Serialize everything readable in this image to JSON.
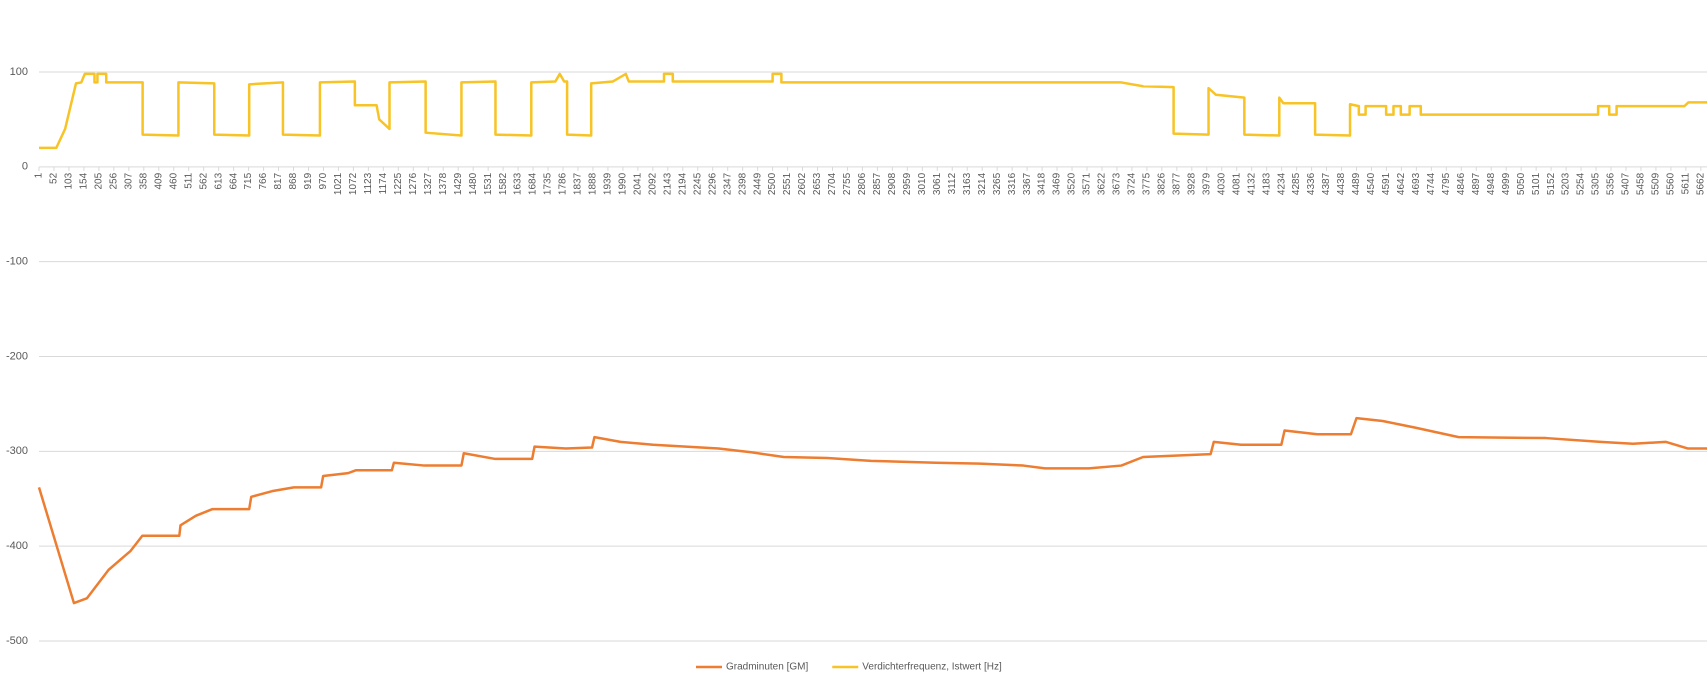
{
  "chart_data": {
    "type": "line",
    "xlim": [
      1,
      5683
    ],
    "xticks": [
      1,
      52,
      103,
      154,
      205,
      256,
      307,
      358,
      409,
      460,
      511,
      562,
      613,
      664,
      715,
      766,
      817,
      868,
      919,
      970,
      1021,
      1072,
      1123,
      1174,
      1225,
      1276,
      1327,
      1378,
      1429,
      1480,
      1531,
      1582,
      1633,
      1684,
      1735,
      1786,
      1837,
      1888,
      1939,
      1990,
      2041,
      2092,
      2143,
      2194,
      2245,
      2296,
      2347,
      2398,
      2449,
      2500,
      2551,
      2602,
      2653,
      2704,
      2755,
      2806,
      2857,
      2908,
      2959,
      3010,
      3061,
      3112,
      3163,
      3214,
      3265,
      3316,
      3367,
      3418,
      3469,
      3520,
      3571,
      3622,
      3673,
      3724,
      3775,
      3826,
      3877,
      3928,
      3979,
      4030,
      4081,
      4132,
      4183,
      4234,
      4285,
      4336,
      4387,
      4438,
      4489,
      4540,
      4591,
      4642,
      4693,
      4744,
      4795,
      4846,
      4897,
      4948,
      4999,
      5050,
      5101,
      5152,
      5203,
      5254,
      5305,
      5356,
      5407,
      5458,
      5509,
      5560,
      5611,
      5662
    ],
    "ylim": [
      -500,
      100
    ],
    "yticks": [
      -500,
      -400,
      -300,
      -200,
      -100,
      0,
      100
    ],
    "grid": true,
    "legend": "bottom",
    "series": [
      {
        "name": "Gradminuten [GM]",
        "color": "#ed7d31",
        "x": [
          1,
          120,
          164,
          238,
          313,
          353,
          479,
          483,
          535,
          591,
          717,
          724,
          795,
          869,
          962,
          969,
          1054,
          1080,
          1203,
          1210,
          1314,
          1440,
          1448,
          1555,
          1681,
          1689,
          1796,
          1885,
          1893,
          1982,
          2093,
          2316,
          2427,
          2538,
          2686,
          2835,
          3057,
          3206,
          3354,
          3428,
          3577,
          3688,
          3762,
          3992,
          4003,
          4096,
          4233,
          4244,
          4355,
          4470,
          4489,
          4578,
          4689,
          4837,
          5134,
          5320,
          5431,
          5542,
          5617,
          5683
        ],
        "values": [
          -338,
          -460,
          -455,
          -425,
          -405,
          -389,
          -389,
          -378,
          -368,
          -361,
          -361,
          -348,
          -342,
          -338,
          -338,
          -326,
          -323,
          -320,
          -320,
          -312,
          -315,
          -315,
          -302,
          -308,
          -308,
          -295,
          -297,
          -296,
          -285,
          -290,
          -293,
          -297,
          -301,
          -306,
          -307,
          -310,
          -312,
          -313,
          -315,
          -318,
          -318,
          -315,
          -306,
          -303,
          -290,
          -293,
          -293,
          -278,
          -282,
          -282,
          -265,
          -268,
          -275,
          -285,
          -286,
          -290,
          -292,
          -290,
          -297,
          -297
        ]
      },
      {
        "name": "Verdichterfrequenz, Istwert [Hz]",
        "color": "#f7c325",
        "x": [
          1,
          60,
          90,
          127,
          145,
          157,
          190,
          190,
          200,
          200,
          230,
          230,
          354,
          354,
          476,
          476,
          598,
          598,
          717,
          717,
          832,
          832,
          958,
          958,
          1077,
          1077,
          1151,
          1160,
          1195,
          1195,
          1318,
          1318,
          1440,
          1440,
          1556,
          1556,
          1678,
          1678,
          1760,
          1775,
          1790,
          1800,
          1800,
          1882,
          1882,
          1956,
          2000,
          2010,
          2130,
          2130,
          2160,
          2160,
          2500,
          2500,
          2530,
          2530,
          3688,
          3762,
          3866,
          3866,
          3985,
          3985,
          4010,
          4107,
          4107,
          4226,
          4226,
          4240,
          4348,
          4348,
          4467,
          4467,
          4497,
          4497,
          4520,
          4520,
          4590,
          4590,
          4615,
          4615,
          4640,
          4640,
          4670,
          4670,
          4708,
          4708,
          5312,
          5312,
          5350,
          5350,
          5375,
          5375,
          5606,
          5620,
          5683
        ],
        "values": [
          20,
          20,
          40,
          88,
          89,
          98,
          98,
          89,
          89,
          98,
          98,
          89,
          89,
          34,
          33,
          89,
          88,
          34,
          33,
          87,
          89,
          34,
          33,
          89,
          90,
          65,
          65,
          50,
          40,
          89,
          90,
          36,
          33,
          89,
          90,
          34,
          33,
          89,
          90,
          98,
          90,
          90,
          34,
          33,
          88,
          90,
          98,
          90,
          90,
          98,
          98,
          90,
          90,
          98,
          98,
          89,
          89,
          85,
          84,
          35,
          34,
          83,
          76,
          73,
          34,
          33,
          73,
          67,
          67,
          34,
          33,
          66,
          64,
          55,
          55,
          64,
          64,
          55,
          55,
          64,
          64,
          55,
          55,
          64,
          64,
          55,
          55,
          64,
          64,
          55,
          55,
          64,
          64,
          68,
          68
        ]
      }
    ]
  }
}
